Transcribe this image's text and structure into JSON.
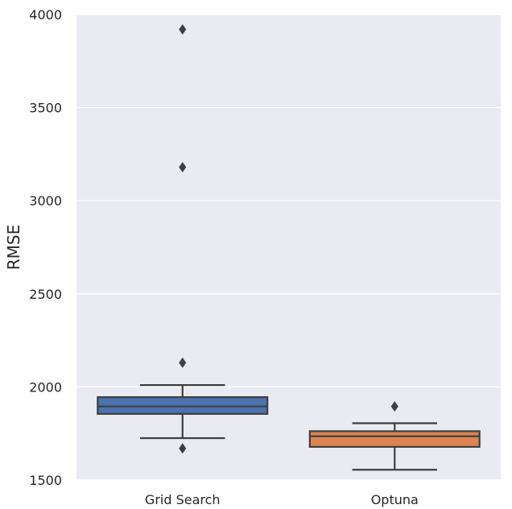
{
  "chart_data": {
    "type": "box",
    "title": "",
    "xlabel": "",
    "ylabel": "RMSE",
    "ylim": [
      1500,
      4000
    ],
    "yticks": [
      1500,
      2000,
      2500,
      3000,
      3500,
      4000
    ],
    "grid": true,
    "background": "#eaeaf2",
    "categories": [
      "Grid Search",
      "Optuna"
    ],
    "series": [
      {
        "category": "Grid Search",
        "color": "#4c72b0",
        "min": 1725,
        "q1": 1855,
        "median": 1895,
        "q3": 1945,
        "max": 2010,
        "outliers": [
          1670,
          2130,
          3180,
          3920
        ]
      },
      {
        "category": "Optuna",
        "color": "#dd8452",
        "min": 1555,
        "q1": 1678,
        "median": 1735,
        "q3": 1762,
        "max": 1805,
        "outliers": [
          1895
        ]
      }
    ]
  }
}
